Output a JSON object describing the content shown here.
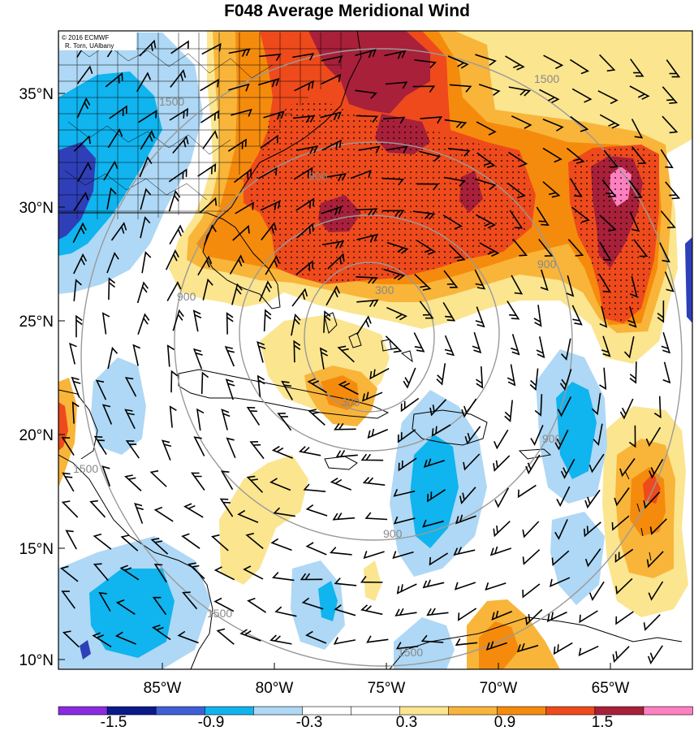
{
  "title": "F048 Average Meridional Wind",
  "credit": {
    "line1": "© 2016 ECMWF",
    "line2": "R. Torn, UAlbany"
  },
  "lat_labels": [
    "35°N",
    "30°N",
    "25°N",
    "20°N",
    "15°N",
    "10°N"
  ],
  "lon_labels": [
    "85°W",
    "80°W",
    "75°W",
    "70°W",
    "65°W"
  ],
  "ring_labels": [
    "300",
    "300",
    "900",
    "900",
    "900",
    "900",
    "900",
    "1500",
    "1500",
    "1500",
    "1500",
    "1500"
  ],
  "colorbar": {
    "labels": [
      "-1.5",
      "-0.9",
      "-0.3",
      "0.3",
      "0.9",
      "1.5"
    ],
    "colors": [
      "#8a2be2",
      "#0a1a8c",
      "#3f5fd6",
      "#10b4ee",
      "#aed8f5",
      "#ffffff",
      "#ffffff",
      "#fbe58f",
      "#f8b53a",
      "#f58b0c",
      "#ee4a1c",
      "#a8203a",
      "#ff80c0"
    ]
  },
  "fill_colors": {
    "dark_blue": "#2f3fb8",
    "mid_blue": "#10b4ee",
    "light_blue": "#aed8f5",
    "light_yellow": "#fbe58f",
    "orange": "#f8b53a",
    "dark_orange": "#f58b0c",
    "red_orange": "#ee4a1c",
    "dark_red": "#a8203a",
    "pink": "#ff80c0"
  }
}
